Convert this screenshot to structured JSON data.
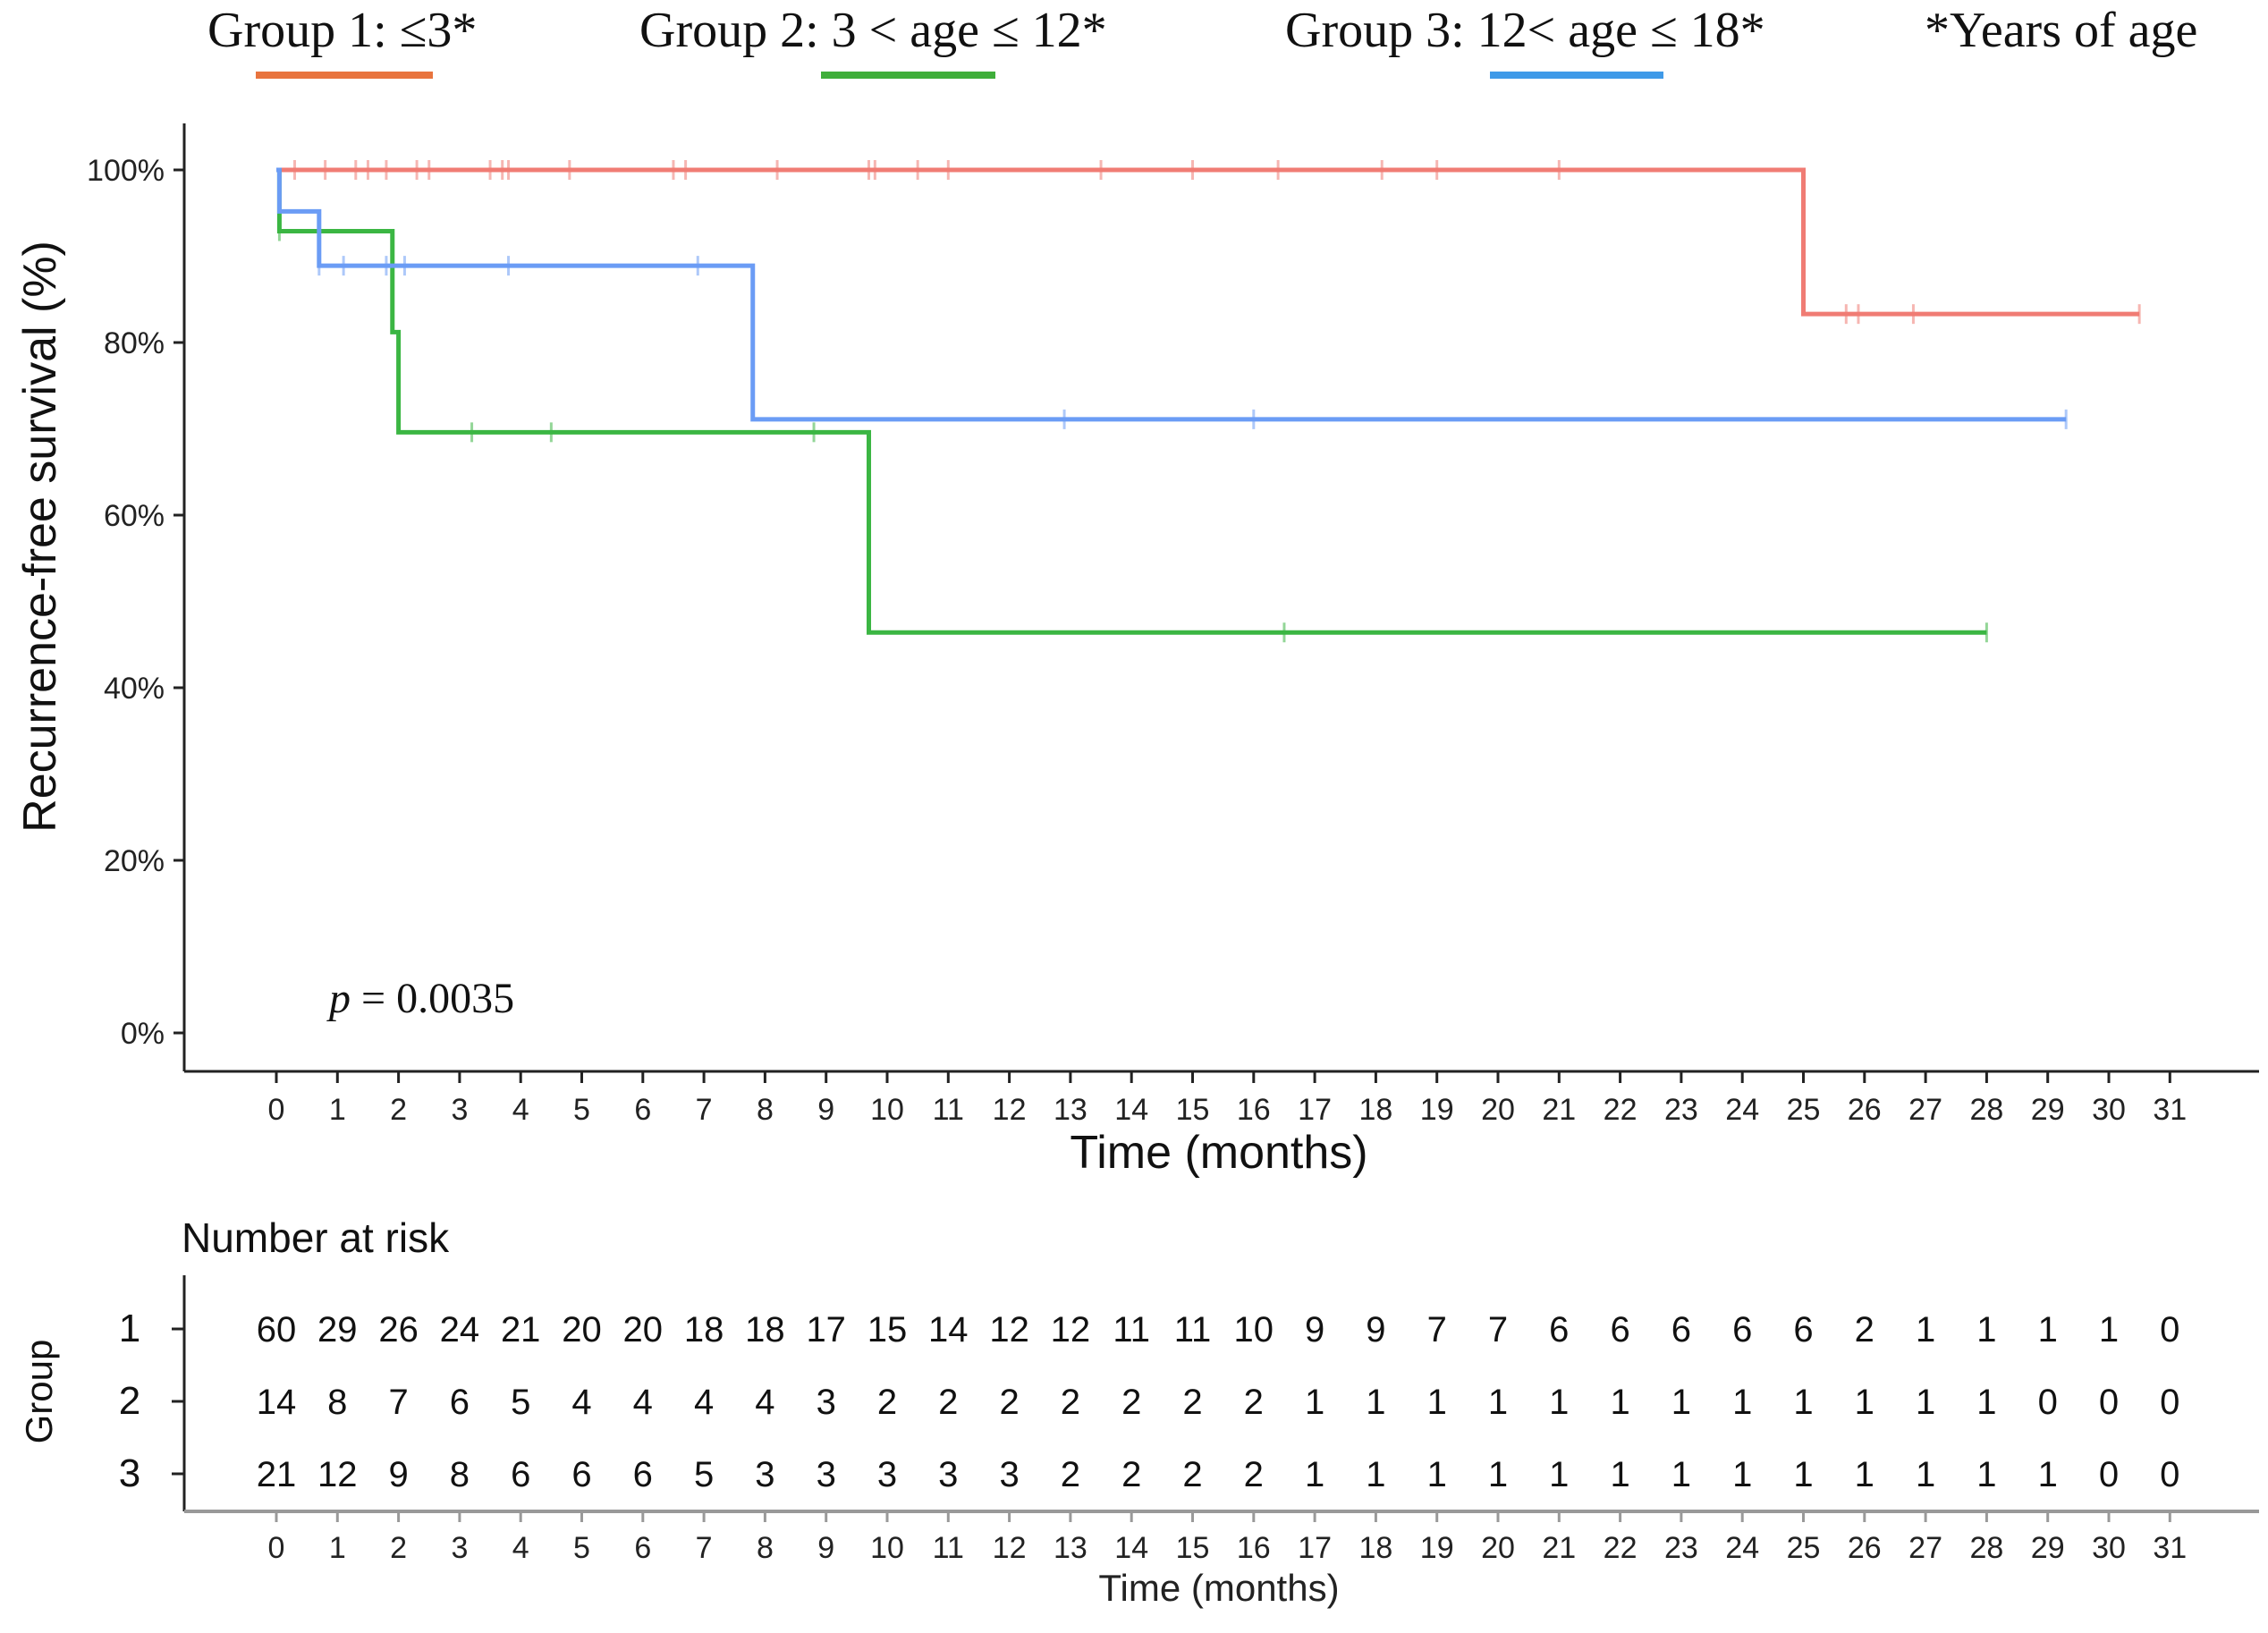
{
  "legend": {
    "group1": "Group 1: ≤3*",
    "group2": "Group 2: 3 < age ≤ 12*",
    "group3": "Group 3: 12< age ≤ 18*",
    "footnote": "*Years of age"
  },
  "p_value": {
    "label": "p",
    "text": " = 0.0035"
  },
  "risk_table": {
    "title": "Number at risk",
    "ylabel": "Group",
    "xlabel": "Time (months)",
    "groups": [
      "1",
      "2",
      "3"
    ],
    "rows": [
      [
        60,
        29,
        26,
        24,
        21,
        20,
        20,
        18,
        18,
        17,
        15,
        14,
        12,
        12,
        11,
        11,
        10,
        9,
        9,
        7,
        7,
        6,
        6,
        6,
        6,
        6,
        2,
        1,
        1,
        1,
        1,
        0
      ],
      [
        14,
        8,
        7,
        6,
        5,
        4,
        4,
        4,
        4,
        3,
        2,
        2,
        2,
        2,
        2,
        2,
        2,
        1,
        1,
        1,
        1,
        1,
        1,
        1,
        1,
        1,
        1,
        1,
        1,
        0,
        0,
        0
      ],
      [
        21,
        12,
        9,
        8,
        6,
        6,
        6,
        5,
        3,
        3,
        3,
        3,
        3,
        2,
        2,
        2,
        2,
        1,
        1,
        1,
        1,
        1,
        1,
        1,
        1,
        1,
        1,
        1,
        1,
        1,
        0,
        0
      ]
    ]
  },
  "chart_data": {
    "type": "line",
    "title": "",
    "xlabel": "Time (months)",
    "ylabel": "Recurrence-free survival  (%)",
    "xlim": [
      0,
      31
    ],
    "ylim": [
      0,
      100
    ],
    "x_ticks": [
      0,
      1,
      2,
      3,
      4,
      5,
      6,
      7,
      8,
      9,
      10,
      11,
      12,
      13,
      14,
      15,
      16,
      17,
      18,
      19,
      20,
      21,
      22,
      23,
      24,
      25,
      26,
      27,
      28,
      29,
      30,
      31
    ],
    "y_ticks": [
      0,
      20,
      40,
      60,
      80,
      100
    ],
    "y_tick_labels": [
      "0%",
      "20%",
      "40%",
      "60%",
      "80%",
      "100%"
    ],
    "grid": false,
    "legend_position": "top",
    "series": [
      {
        "name": "Group 1",
        "color": "#f07c74",
        "steps": [
          [
            0,
            100
          ],
          [
            25.0,
            83.3
          ],
          [
            30.5,
            83.3
          ]
        ],
        "censor_x": [
          0.3,
          0.8,
          1.3,
          1.5,
          1.8,
          2.3,
          2.5,
          3.5,
          3.7,
          3.8,
          4.8,
          6.5,
          6.7,
          8.2,
          9.7,
          9.8,
          10.5,
          11.0,
          13.5,
          15.0,
          16.4,
          18.1,
          19.0,
          21.0,
          25.7,
          25.9,
          26.8,
          30.5
        ]
      },
      {
        "name": "Group 2",
        "color": "#3bb643",
        "steps": [
          [
            0,
            100
          ],
          [
            0.05,
            92.9
          ],
          [
            1.9,
            81.2
          ],
          [
            2.0,
            69.6
          ],
          [
            9.7,
            46.4
          ],
          [
            28.0,
            46.4
          ]
        ],
        "censor_x": [
          0.05,
          3.2,
          4.5,
          8.8,
          16.5,
          28.0
        ]
      },
      {
        "name": "Group 3",
        "color": "#6b9cf5",
        "steps": [
          [
            0,
            100
          ],
          [
            0.05,
            95.2
          ],
          [
            0.7,
            88.9
          ],
          [
            7.8,
            71.1
          ],
          [
            29.3,
            71.1
          ]
        ],
        "censor_x": [
          0.7,
          1.1,
          1.8,
          2.1,
          3.8,
          6.9,
          12.9,
          16.0,
          29.3
        ]
      }
    ]
  }
}
